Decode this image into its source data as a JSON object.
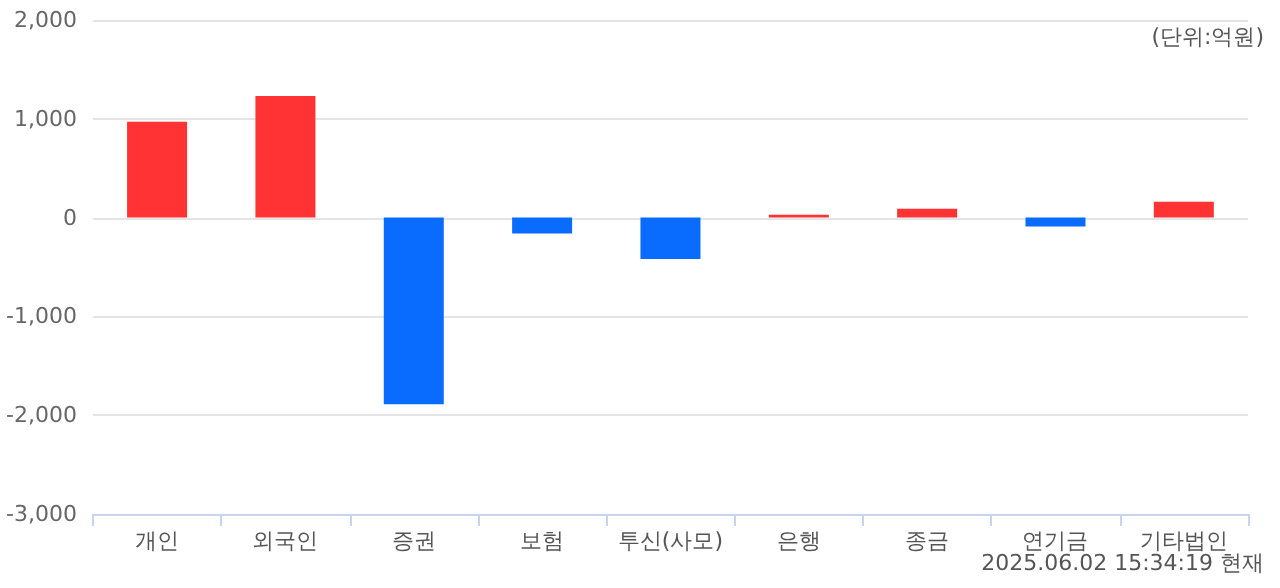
{
  "chart_data": {
    "type": "bar",
    "categories": [
      "개인",
      "외국인",
      "증권",
      "보험",
      "투신(사모)",
      "은행",
      "종금",
      "연기금",
      "기타법인"
    ],
    "values": [
      970,
      1230,
      -1890,
      -160,
      -420,
      30,
      90,
      -90,
      160
    ],
    "colors": [
      "#ff3333",
      "#ff3333",
      "#0a6cff",
      "#0a6cff",
      "#0a6cff",
      "#ff3333",
      "#ff3333",
      "#0a6cff",
      "#ff3333"
    ],
    "ylim": [
      -3000,
      2000
    ],
    "yticks": [
      {
        "value": -3000,
        "label": "-3,000"
      },
      {
        "value": -2000,
        "label": "-2,000"
      },
      {
        "value": -1000,
        "label": "-1,000"
      },
      0,
      {
        "value": 1000,
        "label": "1,000"
      },
      {
        "value": 2000,
        "label": "2,000"
      }
    ],
    "grid": "y",
    "annotations": [
      "(단위:억원)",
      "2025.06.02 15:34:19 현재"
    ]
  }
}
